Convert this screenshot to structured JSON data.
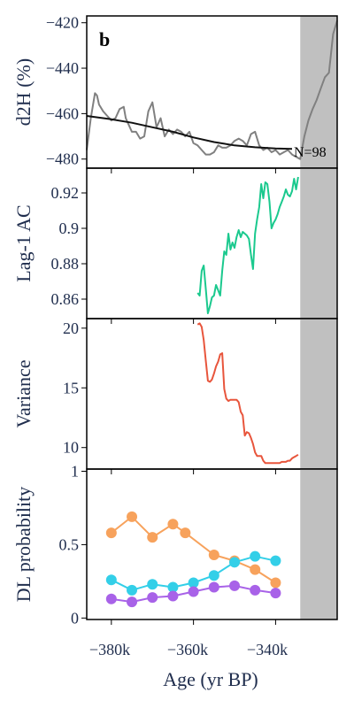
{
  "figure": {
    "panel_letter": "b",
    "xlabel": "Age (yr BP)",
    "x_tick_labels": [
      "−380k",
      "−360k",
      "−340k"
    ]
  },
  "colors": {
    "d2h_raw": "#808080",
    "d2h_trend": "#111111",
    "lag1": "#1bc98e",
    "variance": "#e8553c",
    "dl_orange": "#f7a25c",
    "dl_cyan": "#33cfe8",
    "dl_purple": "#a862e8",
    "shade": "#c0c0c0",
    "axis_text": "#1f2d4d"
  },
  "chart_data": [
    {
      "type": "line",
      "ylabel": "d2H (%)",
      "ylim": [
        -484,
        -417
      ],
      "xlim": [
        -386000,
        -325000
      ],
      "yticks": [
        -420,
        -440,
        -460,
        -480
      ],
      "y_tick_labels": [
        "−420",
        "−440",
        "−460",
        "−480"
      ],
      "annotation": "N=98",
      "shaded_region": [
        -334000,
        -325000
      ],
      "series": [
        {
          "key": "raw",
          "x": [
            -386000,
            -385000,
            -384000,
            -383500,
            -383000,
            -382000,
            -381000,
            -380000,
            -379000,
            -378000,
            -377000,
            -376500,
            -376000,
            -375000,
            -374000,
            -373000,
            -372000,
            -371000,
            -370000,
            -369000,
            -368000,
            -367000,
            -366000,
            -365000,
            -364000,
            -363000,
            -362000,
            -361000,
            -360000,
            -359000,
            -358000,
            -357000,
            -356000,
            -355000,
            -354000,
            -353000,
            -352000,
            -351000,
            -350000,
            -349000,
            -348000,
            -347000,
            -346000,
            -345000,
            -344000,
            -343000,
            -342000,
            -341000,
            -340000,
            -339000,
            -338000,
            -337000,
            -336000,
            -335000,
            -334000,
            -333000,
            -332000,
            -331000,
            -330000,
            -329000,
            -328000,
            -327000,
            -326000,
            -325000
          ],
          "values": [
            -476,
            -462,
            -451,
            -452,
            -456,
            -459,
            -461,
            -463,
            -462,
            -458,
            -457,
            -462,
            -464,
            -468,
            -468,
            -471,
            -470,
            -459,
            -455,
            -466,
            -462,
            -470,
            -467,
            -469,
            -467,
            -468,
            -470,
            -468,
            -473,
            -474,
            -476,
            -478,
            -478,
            -477,
            -474,
            -475,
            -475,
            -474,
            -472,
            -471,
            -472,
            -474,
            -469,
            -468,
            -474,
            -476,
            -475,
            -477,
            -476,
            -478,
            -477,
            -476,
            -478,
            -479,
            -480,
            -470,
            -463,
            -458,
            -454,
            -449,
            -444,
            -442,
            -425,
            -419
          ]
        },
        {
          "key": "trend",
          "x": [
            -386000,
            -380000,
            -375000,
            -370000,
            -365000,
            -360000,
            -355000,
            -350000,
            -345000,
            -340000,
            -336000
          ],
          "values": [
            -461,
            -462.5,
            -464,
            -466,
            -468,
            -470.5,
            -472.5,
            -474,
            -474.8,
            -475.3,
            -475.5
          ]
        }
      ]
    },
    {
      "type": "line",
      "ylabel": "Lag-1 AC",
      "ylim": [
        0.849,
        0.934
      ],
      "xlim": [
        -386000,
        -325000
      ],
      "yticks": [
        0.86,
        0.88,
        0.9,
        0.92
      ],
      "y_tick_labels": [
        "0.86",
        "0.88",
        "0.9",
        "0.92"
      ],
      "shaded_region": [
        -334000,
        -325000
      ],
      "series": [
        {
          "key": "lag1",
          "x": [
            -359000,
            -358500,
            -358000,
            -357500,
            -357000,
            -356500,
            -356000,
            -355500,
            -355000,
            -354500,
            -354000,
            -353500,
            -353000,
            -352500,
            -352000,
            -351500,
            -351000,
            -350500,
            -350000,
            -349500,
            -349000,
            -348500,
            -348000,
            -347500,
            -347000,
            -346500,
            -346000,
            -345500,
            -345000,
            -344500,
            -344000,
            -343500,
            -343000,
            -342500,
            -342000,
            -341500,
            -341000,
            -340500,
            -340000,
            -339500,
            -339000,
            -338500,
            -338000,
            -337500,
            -337000,
            -336500,
            -336000,
            -335500,
            -335000,
            -334500
          ],
          "values": [
            0.8635,
            0.862,
            0.876,
            0.879,
            0.866,
            0.852,
            0.856,
            0.861,
            0.862,
            0.868,
            0.865,
            0.862,
            0.876,
            0.887,
            0.885,
            0.897,
            0.888,
            0.892,
            0.889,
            0.895,
            0.899,
            0.895,
            0.898,
            0.897,
            0.896,
            0.894,
            0.885,
            0.877,
            0.897,
            0.905,
            0.912,
            0.925,
            0.917,
            0.926,
            0.925,
            0.915,
            0.9,
            0.903,
            0.905,
            0.908,
            0.912,
            0.915,
            0.918,
            0.922,
            0.919,
            0.918,
            0.921,
            0.928,
            0.922,
            0.929
          ]
        }
      ]
    },
    {
      "type": "line",
      "ylabel": "Variance",
      "ylim": [
        8.2,
        20.8
      ],
      "xlim": [
        -386000,
        -325000
      ],
      "yticks": [
        10,
        15,
        20
      ],
      "y_tick_labels": [
        "10",
        "15",
        "20"
      ],
      "shaded_region": [
        -334000,
        -325000
      ],
      "series": [
        {
          "key": "variance",
          "x": [
            -359000,
            -358500,
            -358000,
            -357500,
            -357000,
            -356500,
            -356000,
            -355500,
            -355000,
            -354500,
            -354000,
            -353500,
            -353000,
            -352500,
            -352000,
            -351500,
            -351000,
            -350500,
            -350000,
            -349500,
            -349000,
            -348500,
            -348000,
            -347500,
            -347000,
            -346500,
            -346000,
            -345500,
            -345000,
            -344500,
            -344000,
            -343500,
            -343000,
            -342500,
            -342000,
            -341500,
            -341000,
            -340500,
            -340000,
            -339500,
            -339000,
            -338500,
            -338000,
            -337500,
            -337000,
            -336500,
            -336000,
            -335500,
            -335000,
            -334500
          ],
          "values": [
            20.3,
            20.4,
            20.1,
            19.0,
            17.3,
            15.6,
            15.5,
            15.7,
            16.2,
            16.8,
            17.2,
            17.8,
            17.9,
            14.9,
            14.1,
            13.9,
            14.0,
            14.0,
            14.0,
            14.0,
            13.8,
            13.0,
            12.7,
            11.0,
            11.3,
            11.2,
            10.8,
            10.3,
            9.6,
            9.3,
            9.3,
            9.3,
            8.9,
            8.7,
            8.7,
            8.7,
            8.7,
            8.7,
            8.7,
            8.7,
            8.7,
            8.8,
            8.8,
            8.8,
            8.9,
            8.9,
            9.1,
            9.2,
            9.3,
            9.4
          ]
        }
      ]
    },
    {
      "type": "line",
      "ylabel": "DL probability",
      "ylim": [
        -0.01,
        1.015
      ],
      "xlim": [
        -386000,
        -325000
      ],
      "yticks": [
        0,
        0.5,
        1
      ],
      "y_tick_labels": [
        "0",
        "0.5",
        "1"
      ],
      "shaded_region": [
        -334000,
        -325000
      ],
      "series": [
        {
          "key": "orange",
          "x": [
            -380000,
            -375000,
            -370000,
            -365000,
            -362000,
            -355000,
            -350000,
            -345000,
            -340000
          ],
          "values": [
            0.58,
            0.69,
            0.55,
            0.64,
            0.58,
            0.43,
            0.39,
            0.33,
            0.24
          ]
        },
        {
          "key": "cyan",
          "x": [
            -380000,
            -375000,
            -370000,
            -365000,
            -360000,
            -355000,
            -350000,
            -345000,
            -340000
          ],
          "values": [
            0.26,
            0.19,
            0.23,
            0.21,
            0.24,
            0.29,
            0.38,
            0.42,
            0.39
          ]
        },
        {
          "key": "purple",
          "x": [
            -380000,
            -375000,
            -370000,
            -365000,
            -360000,
            -355000,
            -350000,
            -345000,
            -340000
          ],
          "values": [
            0.13,
            0.11,
            0.14,
            0.15,
            0.18,
            0.21,
            0.22,
            0.19,
            0.17
          ]
        }
      ]
    }
  ]
}
